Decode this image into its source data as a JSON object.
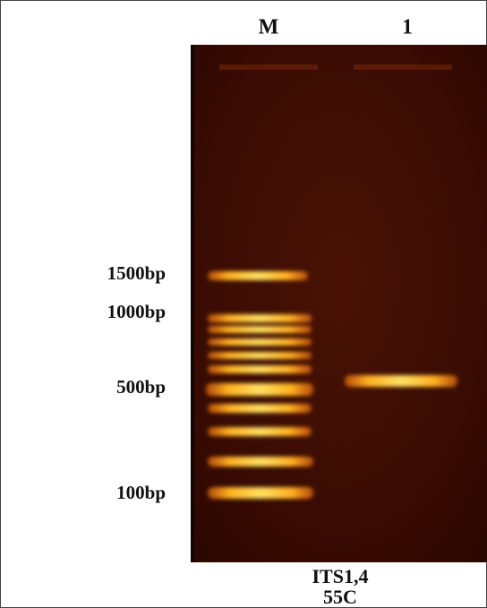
{
  "lanes": [
    "M",
    "1"
  ],
  "markers": [
    "1500bp",
    "1000bp",
    "500bp",
    "100bp"
  ],
  "caption": [
    "ITS1,4",
    "55C"
  ]
}
